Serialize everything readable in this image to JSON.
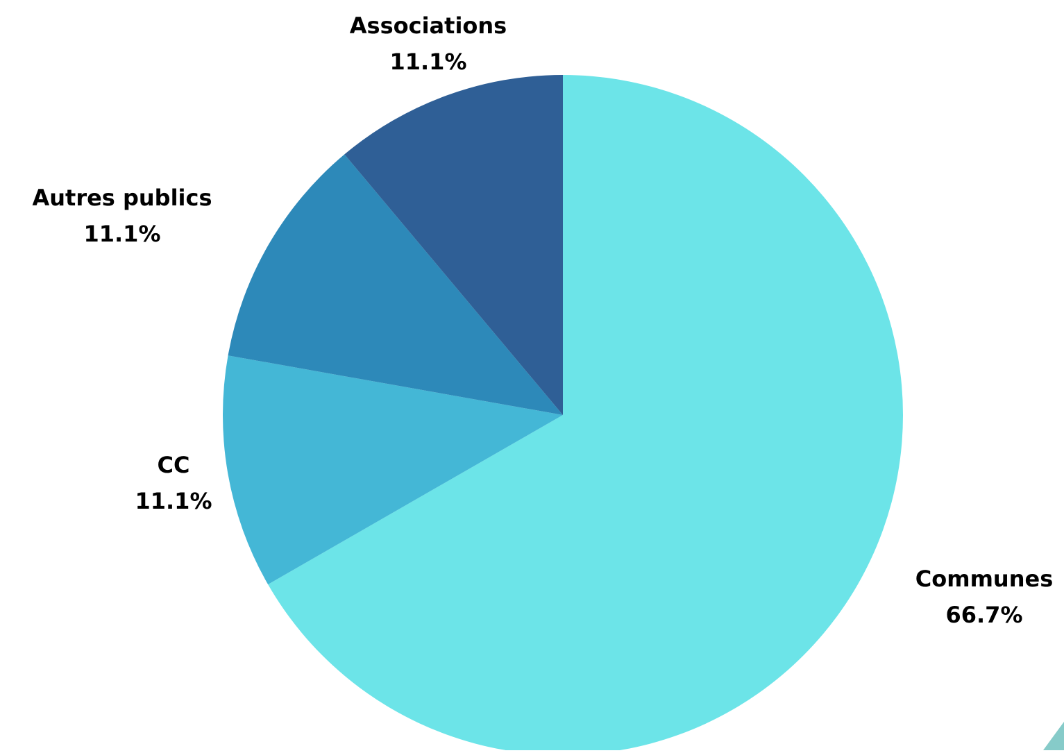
{
  "chart_data": {
    "type": "pie",
    "title": "",
    "slices": [
      {
        "label": "Communes",
        "value": 66.7,
        "display": "66.7%",
        "color": "#6ce4e8"
      },
      {
        "label": "CC",
        "value": 11.1,
        "display": "11.1%",
        "color": "#44b7d6"
      },
      {
        "label": "Autres publics",
        "value": 11.1,
        "display": "11.1%",
        "color": "#2d89b9"
      },
      {
        "label": "Associations",
        "value": 11.1,
        "display": "11.1%",
        "color": "#2f5f96"
      }
    ]
  },
  "decoration": {
    "corner_color": "#86cbc9"
  }
}
